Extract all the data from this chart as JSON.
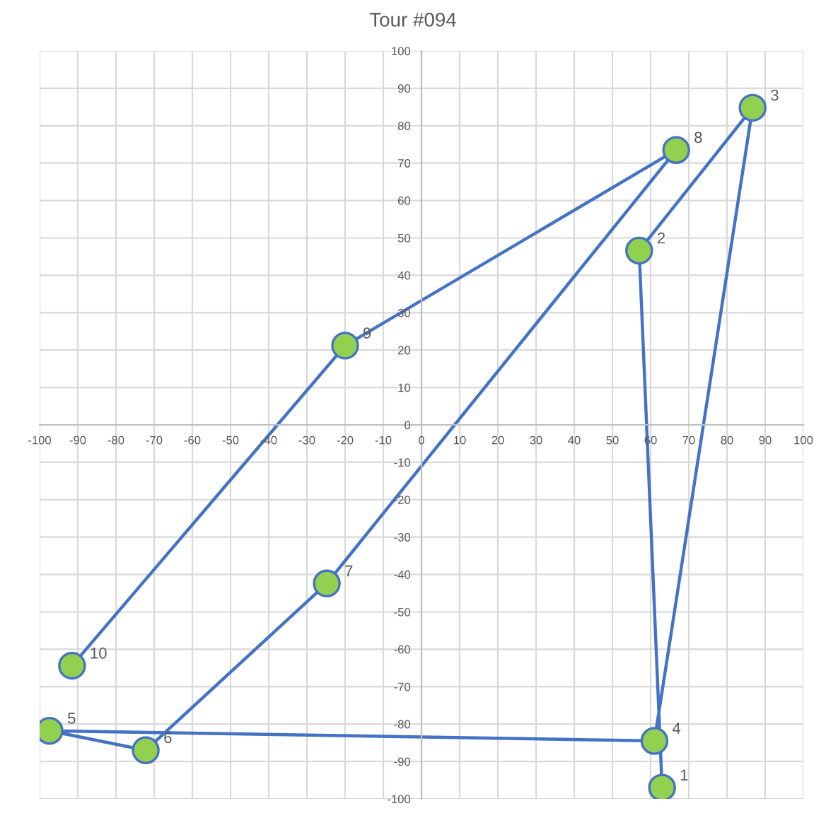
{
  "chart_data": {
    "type": "line",
    "title": "Tour #094",
    "line_style": "solid",
    "grid": true,
    "series": [
      {
        "color": "#4472c4",
        "marker": "circle",
        "colors": [
          "#92d050",
          "#92d050",
          "#92d050",
          "#92d050",
          "#92d050",
          "#92d050",
          "#92d050",
          "#92d050",
          "#92d050",
          "#92d050"
        ],
        "x": [
          63,
          57,
          86.7,
          61,
          -97.4,
          -72.2,
          -24.8,
          66.7,
          -20,
          -91.5
        ],
        "values": [
          -97,
          46.6,
          84.8,
          -84.5,
          -81.8,
          -87,
          -42.4,
          73.5,
          21.2,
          -64.4
        ]
      }
    ],
    "annotations": [
      {
        "text": "1",
        "x": 63,
        "y": -97
      },
      {
        "text": "2",
        "x": 57,
        "y": 46.6
      },
      {
        "text": "3",
        "x": 86.7,
        "y": 84.8
      },
      {
        "text": "4",
        "x": 61,
        "y": -84.5
      },
      {
        "text": "5",
        "x": -97.4,
        "y": -81.8
      },
      {
        "text": "6",
        "x": -72.2,
        "y": -87
      },
      {
        "text": "7",
        "x": -24.8,
        "y": -42.4
      },
      {
        "text": "8",
        "x": 66.7,
        "y": 73.5
      },
      {
        "text": "9",
        "x": -20,
        "y": 21.2
      },
      {
        "text": "10",
        "x": -91.5,
        "y": -64.4
      }
    ],
    "xlim": [
      -100,
      100
    ],
    "ylim": [
      -100,
      100
    ],
    "xticks": [
      -100,
      -90,
      -80,
      -70,
      -60,
      -50,
      -40,
      -30,
      -20,
      -10,
      0,
      10,
      20,
      30,
      40,
      50,
      60,
      70,
      80,
      90,
      100
    ],
    "yticks": [
      -100,
      -90,
      -80,
      -70,
      -60,
      -50,
      -40,
      -30,
      -20,
      -10,
      0,
      10,
      20,
      30,
      40,
      50,
      60,
      70,
      80,
      90,
      100
    ]
  }
}
